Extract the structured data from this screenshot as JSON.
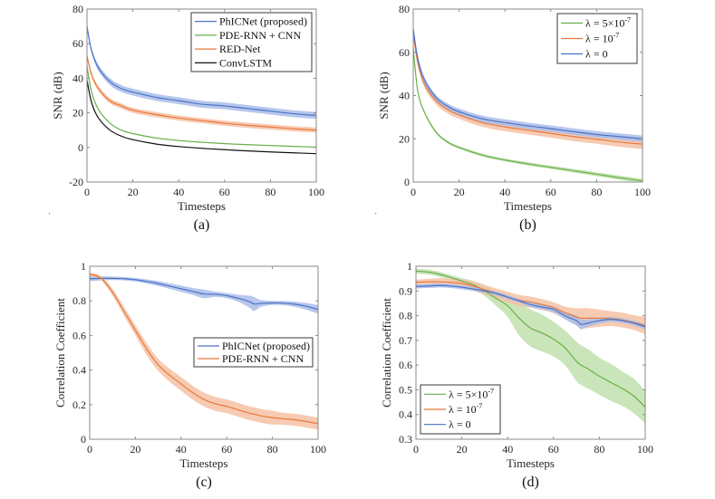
{
  "colors": {
    "blue": "#4a72c9",
    "blue_band": "#a9bde8",
    "green": "#6ab04c",
    "green_band": "#bfe0ad",
    "orange": "#e8783c",
    "orange_band": "#f6c2a4",
    "black": "#111111"
  },
  "chart_data": [
    {
      "id": "a",
      "panel_label": "(a)",
      "type": "line",
      "title": "",
      "xlabel": "Timesteps",
      "ylabel": "SNR (dB)",
      "xlim": [
        0,
        100
      ],
      "ylim": [
        -20,
        80
      ],
      "xticks": [
        0,
        20,
        40,
        60,
        80,
        100
      ],
      "yticks": [
        -20,
        0,
        20,
        40,
        60,
        80
      ],
      "legend_position": "top-right",
      "x": [
        0,
        2,
        5,
        10,
        15,
        20,
        30,
        40,
        50,
        60,
        70,
        80,
        90,
        100
      ],
      "series": [
        {
          "name": "PhICNet (proposed)",
          "color_key": "blue",
          "values": [
            70,
            56,
            46,
            38,
            34,
            32,
            29,
            27,
            25,
            24,
            22.5,
            21,
            19.5,
            18.5
          ],
          "band": [
            1.5,
            1.5,
            1.8,
            2.0,
            2.0,
            2.0,
            2.0,
            2.0,
            2.0,
            2.0,
            2.0,
            2.0,
            2.0,
            2.0
          ]
        },
        {
          "name": "PDE-RNN + CNN",
          "color_key": "green",
          "values": [
            47,
            32,
            22,
            14,
            10,
            8,
            5.5,
            4,
            3,
            2.2,
            1.6,
            1.1,
            0.6,
            0.2
          ],
          "band": [
            0.3,
            0.3,
            0.3,
            0.3,
            0.3,
            0.3,
            0.3,
            0.3,
            0.3,
            0.3,
            0.3,
            0.3,
            0.3,
            0.3
          ]
        },
        {
          "name": "RED-Net",
          "color_key": "orange",
          "values": [
            53,
            42,
            34,
            27,
            24,
            21.5,
            19,
            17,
            15.5,
            14,
            12.8,
            11.8,
            10.8,
            10
          ],
          "band": [
            1.2,
            1.3,
            1.5,
            1.5,
            1.5,
            1.5,
            1.5,
            1.5,
            1.5,
            1.5,
            1.5,
            1.5,
            1.5,
            1.5
          ]
        },
        {
          "name": "ConvLSTM",
          "color_key": "black",
          "values": [
            39,
            26,
            17,
            10,
            6.5,
            4.5,
            2,
            0.5,
            -0.5,
            -1.3,
            -2,
            -2.6,
            -3.1,
            -3.6
          ],
          "band": [
            0,
            0,
            0,
            0,
            0,
            0,
            0,
            0,
            0,
            0,
            0,
            0,
            0,
            0
          ]
        }
      ]
    },
    {
      "id": "b",
      "panel_label": "(b)",
      "type": "line",
      "title": "",
      "xlabel": "Timesteps",
      "ylabel": "SNR (dB)",
      "xlim": [
        0,
        100
      ],
      "ylim": [
        0,
        80
      ],
      "xticks": [
        0,
        20,
        40,
        60,
        80,
        100
      ],
      "yticks": [
        0,
        20,
        40,
        60,
        80
      ],
      "legend_position": "top-right",
      "x": [
        0,
        2,
        5,
        10,
        15,
        20,
        30,
        40,
        50,
        60,
        70,
        80,
        90,
        100
      ],
      "series": [
        {
          "name": "λ = 5×10^-7",
          "label_base": "λ = 5×10",
          "label_exp": "-7",
          "color_key": "green",
          "values": [
            62,
            42,
            32,
            23,
            18.5,
            16,
            12.5,
            10.2,
            8.4,
            6.8,
            5.2,
            3.6,
            2.0,
            0.5
          ],
          "band": [
            0.6,
            0.6,
            0.6,
            0.6,
            0.6,
            0.6,
            0.7,
            0.7,
            0.8,
            0.8,
            0.9,
            0.9,
            1.0,
            1.0
          ]
        },
        {
          "name": "λ = 10^-7",
          "label_base": "λ = 10",
          "label_exp": "-7",
          "color_key": "orange",
          "values": [
            69,
            55,
            45,
            37.5,
            33.5,
            31,
            27.5,
            25.5,
            24,
            22.5,
            21,
            19.8,
            18.5,
            17.5
          ],
          "band": [
            1.0,
            1.2,
            1.5,
            1.7,
            1.8,
            1.8,
            1.9,
            2.0,
            2.0,
            2.0,
            2.1,
            2.1,
            2.2,
            2.2
          ]
        },
        {
          "name": "λ = 0",
          "label_base": "λ = 0",
          "label_exp": "",
          "color_key": "blue",
          "values": [
            71,
            57,
            47,
            39,
            35,
            32.5,
            29.3,
            27.5,
            26,
            24.7,
            23.3,
            22,
            21,
            20
          ],
          "band": [
            0.8,
            1.0,
            1.2,
            1.3,
            1.4,
            1.5,
            1.5,
            1.5,
            1.5,
            1.5,
            1.5,
            1.5,
            1.5,
            1.5
          ]
        }
      ]
    },
    {
      "id": "c",
      "panel_label": "(c)",
      "type": "line",
      "title": "",
      "xlabel": "Timesteps",
      "ylabel": "Correlation Coefficient",
      "xlim": [
        0,
        100
      ],
      "ylim": [
        0,
        1
      ],
      "xticks": [
        0,
        20,
        40,
        60,
        80,
        100
      ],
      "yticks": [
        0,
        0.2,
        0.4,
        0.6,
        0.8,
        1
      ],
      "legend_position": "center-right",
      "x": [
        0,
        5,
        10,
        15,
        20,
        25,
        30,
        35,
        40,
        45,
        50,
        55,
        60,
        65,
        70,
        72,
        75,
        80,
        85,
        90,
        95,
        100
      ],
      "series": [
        {
          "name": "PhICNet (proposed)",
          "color_key": "blue",
          "values": [
            0.928,
            0.93,
            0.93,
            0.928,
            0.922,
            0.912,
            0.9,
            0.885,
            0.87,
            0.855,
            0.84,
            0.838,
            0.83,
            0.815,
            0.795,
            0.782,
            0.785,
            0.788,
            0.787,
            0.78,
            0.768,
            0.75
          ],
          "band": [
            0.015,
            0.012,
            0.01,
            0.01,
            0.01,
            0.012,
            0.014,
            0.016,
            0.018,
            0.02,
            0.025,
            0.015,
            0.015,
            0.02,
            0.035,
            0.04,
            0.02,
            0.012,
            0.012,
            0.015,
            0.02,
            0.025
          ]
        },
        {
          "name": "PDE-RNN + CNN",
          "color_key": "orange",
          "values": [
            0.955,
            0.93,
            0.85,
            0.74,
            0.63,
            0.52,
            0.43,
            0.37,
            0.32,
            0.27,
            0.23,
            0.205,
            0.19,
            0.17,
            0.15,
            0.145,
            0.135,
            0.125,
            0.118,
            0.112,
            0.102,
            0.09
          ],
          "band": [
            0.01,
            0.012,
            0.02,
            0.025,
            0.03,
            0.035,
            0.035,
            0.038,
            0.04,
            0.04,
            0.04,
            0.04,
            0.04,
            0.04,
            0.04,
            0.04,
            0.04,
            0.04,
            0.035,
            0.035,
            0.035,
            0.035
          ]
        }
      ]
    },
    {
      "id": "d",
      "panel_label": "(d)",
      "type": "line",
      "title": "",
      "xlabel": "Timesteps",
      "ylabel": "Correlation Coefficient",
      "xlim": [
        0,
        100
      ],
      "ylim": [
        0.3,
        1
      ],
      "xticks": [
        0,
        20,
        40,
        60,
        80,
        100
      ],
      "yticks": [
        0.3,
        0.4,
        0.5,
        0.6,
        0.7,
        0.8,
        0.9,
        1
      ],
      "legend_position": "bottom-left",
      "x": [
        0,
        5,
        10,
        15,
        20,
        25,
        30,
        35,
        40,
        45,
        50,
        55,
        60,
        65,
        70,
        72,
        75,
        80,
        85,
        90,
        95,
        100
      ],
      "series": [
        {
          "name": "λ = 5×10^-7",
          "label_base": "λ = 5×10",
          "label_exp": "-7",
          "color_key": "green",
          "values": [
            0.98,
            0.977,
            0.968,
            0.955,
            0.94,
            0.925,
            0.9,
            0.87,
            0.84,
            0.79,
            0.75,
            0.73,
            0.705,
            0.67,
            0.615,
            0.6,
            0.585,
            0.555,
            0.53,
            0.505,
            0.475,
            0.43
          ],
          "band": [
            0.01,
            0.01,
            0.01,
            0.01,
            0.012,
            0.015,
            0.02,
            0.03,
            0.045,
            0.07,
            0.075,
            0.075,
            0.07,
            0.07,
            0.08,
            0.08,
            0.08,
            0.075,
            0.075,
            0.07,
            0.07,
            0.065
          ]
        },
        {
          "name": "λ = 10^-7",
          "label_base": "λ = 10",
          "label_exp": "-7",
          "color_key": "orange",
          "values": [
            0.935,
            0.937,
            0.937,
            0.935,
            0.93,
            0.92,
            0.905,
            0.89,
            0.875,
            0.862,
            0.855,
            0.845,
            0.832,
            0.812,
            0.795,
            0.79,
            0.79,
            0.79,
            0.788,
            0.782,
            0.772,
            0.76
          ],
          "band": [
            0.01,
            0.012,
            0.015,
            0.015,
            0.017,
            0.02,
            0.02,
            0.02,
            0.022,
            0.022,
            0.022,
            0.022,
            0.022,
            0.025,
            0.035,
            0.04,
            0.04,
            0.035,
            0.03,
            0.03,
            0.03,
            0.035
          ]
        },
        {
          "name": "λ = 0",
          "label_base": "λ = 0",
          "label_exp": "",
          "color_key": "blue",
          "values": [
            0.918,
            0.92,
            0.922,
            0.92,
            0.915,
            0.908,
            0.9,
            0.89,
            0.875,
            0.86,
            0.845,
            0.835,
            0.825,
            0.8,
            0.78,
            0.765,
            0.77,
            0.78,
            0.785,
            0.78,
            0.77,
            0.755
          ],
          "band": [
            0.008,
            0.008,
            0.008,
            0.008,
            0.008,
            0.008,
            0.008,
            0.008,
            0.008,
            0.008,
            0.01,
            0.01,
            0.012,
            0.015,
            0.02,
            0.02,
            0.015,
            0.012,
            0.01,
            0.01,
            0.01,
            0.012
          ]
        }
      ]
    }
  ]
}
